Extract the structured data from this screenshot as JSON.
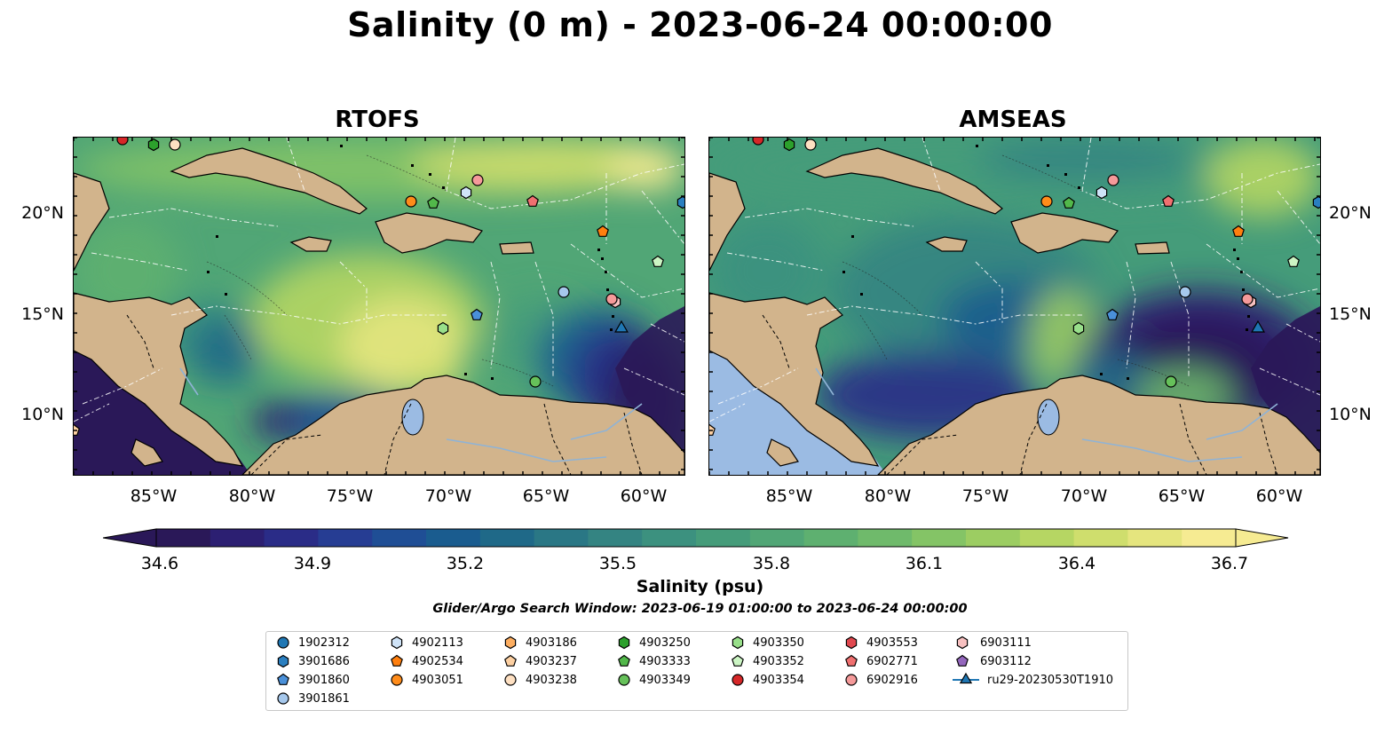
{
  "title": "Salinity (0 m) - 2023-06-24 00:00:00",
  "panels": [
    {
      "title": "RTOFS"
    },
    {
      "title": "AMSEAS"
    }
  ],
  "lat_labels": [
    "20°N",
    "15°N",
    "10°N"
  ],
  "lon_labels": [
    "85°W",
    "80°W",
    "75°W",
    "70°W",
    "65°W",
    "60°W"
  ],
  "colorbar": {
    "label": "Salinity (psu)",
    "ticks": [
      "34.6",
      "34.9",
      "35.2",
      "35.5",
      "35.8",
      "36.1",
      "36.4",
      "36.7"
    ],
    "min": 34.6,
    "max": 36.7,
    "colors": [
      "#2a1858",
      "#2c1f72",
      "#2a2c87",
      "#263d93",
      "#1f4e95",
      "#1a5c8f",
      "#1f6988",
      "#2a7785",
      "#348482",
      "#3c917f",
      "#459c7a",
      "#51a676",
      "#5eb070",
      "#6fba6b",
      "#84c466",
      "#9ccd62",
      "#b6d663",
      "#cfde6d",
      "#e5e57e",
      "#f6eb92"
    ]
  },
  "search_window": "Glider/Argo Search Window: 2023-06-19 01:00:00 to 2023-06-24 00:00:00",
  "legend": [
    {
      "label": "1902312",
      "marker": "circle",
      "color": "#1f77b4"
    },
    {
      "label": "3901686",
      "marker": "hexagon",
      "color": "#2a7fc0"
    },
    {
      "label": "3901860",
      "marker": "pentagon",
      "color": "#4a90d9"
    },
    {
      "label": "3901861",
      "marker": "circle",
      "color": "#a6c8ec"
    },
    {
      "label": "4902113",
      "marker": "hexagon",
      "color": "#cfe3f7"
    },
    {
      "label": "4902534",
      "marker": "pentagon",
      "color": "#ff7f0e"
    },
    {
      "label": "4903051",
      "marker": "circle",
      "color": "#ff8c1a"
    },
    {
      "label": "4903186",
      "marker": "hexagon",
      "color": "#fdae61"
    },
    {
      "label": "4903237",
      "marker": "pentagon",
      "color": "#fdd0a2"
    },
    {
      "label": "4903238",
      "marker": "circle",
      "color": "#fee0c2"
    },
    {
      "label": "4903250",
      "marker": "hexagon",
      "color": "#2ca02c"
    },
    {
      "label": "4903333",
      "marker": "pentagon",
      "color": "#52b84a"
    },
    {
      "label": "4903349",
      "marker": "circle",
      "color": "#66c15a"
    },
    {
      "label": "4903350",
      "marker": "hexagon",
      "color": "#98df8a"
    },
    {
      "label": "4903352",
      "marker": "pentagon",
      "color": "#ccf5c4"
    },
    {
      "label": "4903354",
      "marker": "circle",
      "color": "#d62728"
    },
    {
      "label": "4903553",
      "marker": "hexagon",
      "color": "#e0484f"
    },
    {
      "label": "6902771",
      "marker": "pentagon",
      "color": "#f07070"
    },
    {
      "label": "6902916",
      "marker": "circle",
      "color": "#f59a9a"
    },
    {
      "label": "6903111",
      "marker": "hexagon",
      "color": "#f7c0c0"
    },
    {
      "label": "6903112",
      "marker": "pentagon",
      "color": "#9467bd"
    },
    {
      "label": "ru29-20230530T1910",
      "marker": "triangle-line",
      "color": "#1f77b4"
    }
  ]
}
